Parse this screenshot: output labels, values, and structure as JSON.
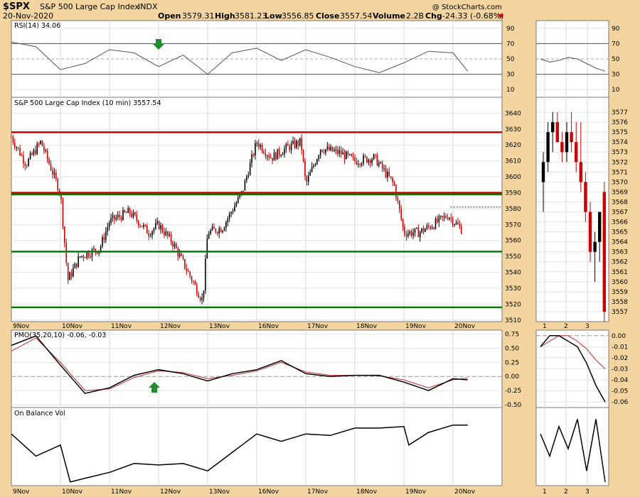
{
  "header": {
    "symbol": "$SPX",
    "name": "S&P 500 Large Cap Index",
    "exchange": "INDX",
    "date": "20-Nov-2020",
    "watermark": "@ StockCharts.com",
    "open_label": "Open",
    "open": "3579.31",
    "high_label": "High",
    "high": "3581.23",
    "low_label": "Low",
    "low": "3556.85",
    "close_label": "Close",
    "close": "3557.54",
    "volume_label": "Volume",
    "volume": "2.2B",
    "chg_label": "Chg",
    "chg": "-24.33 (-0.68%)"
  },
  "colors": {
    "background": "#f4d5a0",
    "plot": "#ffffff",
    "red_line": "#d00000",
    "green_line": "#008000",
    "up_candle": "#000000",
    "down_candle": "#cc0000",
    "signal": "#c03030",
    "arrow": "#1e8c2c"
  },
  "chart_data": [
    {
      "type": "line",
      "panel": "rsi",
      "title": "RSI(14) 34.06",
      "yticks": [
        10,
        30,
        50,
        70,
        90
      ],
      "ylim": [
        0,
        100
      ],
      "overbought": 70,
      "oversold": 30,
      "x_days": [
        0,
        0.5,
        1,
        1.5,
        2,
        2.5,
        3,
        3.5,
        4,
        4.5,
        5,
        5.5,
        6,
        6.5,
        7,
        7.5,
        8,
        8.5,
        9,
        9.3
      ],
      "values": [
        72,
        66,
        36,
        44,
        62,
        58,
        40,
        55,
        30,
        58,
        64,
        48,
        62,
        52,
        40,
        32,
        45,
        60,
        58,
        34
      ],
      "inset_x": [
        0,
        0.5,
        1,
        1.5,
        2,
        2.5,
        3,
        3.5
      ],
      "inset_values": [
        50,
        46,
        48,
        52,
        50,
        44,
        38,
        34
      ]
    },
    {
      "type": "candlestick",
      "panel": "price",
      "title": "S&P 500 Large Cap Index (10 min) 3557.54",
      "yticks": [
        3510,
        3520,
        3530,
        3540,
        3550,
        3560,
        3570,
        3580,
        3590,
        3600,
        3610,
        3620,
        3630,
        3640
      ],
      "ylim": [
        3509,
        3650
      ],
      "x_labels": [
        "9Nov",
        "10Nov",
        "11Nov",
        "12Nov",
        "13Nov",
        "16Nov",
        "17Nov",
        "18Nov",
        "19Nov",
        "20Nov"
      ],
      "horizontal_lines": [
        {
          "value": 3628,
          "color": "red"
        },
        {
          "value": 3590,
          "color": "red"
        },
        {
          "value": 3589,
          "color": "green"
        },
        {
          "value": 3553,
          "color": "green"
        },
        {
          "value": 3518,
          "color": "green"
        }
      ],
      "path_days": [
        0,
        0.3,
        0.6,
        1.0,
        1.15,
        1.4,
        1.8,
        2.0,
        2.4,
        2.8,
        3.0,
        3.3,
        3.6,
        3.9,
        4.0,
        4.3,
        4.7,
        5.0,
        5.3,
        5.6,
        5.9,
        6.0,
        6.3,
        6.7,
        7.0,
        7.4,
        7.8,
        8.0,
        8.3,
        8.6,
        8.9,
        9.2
      ],
      "path_values": [
        3625,
        3608,
        3622,
        3590,
        3535,
        3550,
        3555,
        3572,
        3578,
        3565,
        3570,
        3558,
        3540,
        3522,
        3565,
        3568,
        3590,
        3622,
        3612,
        3618,
        3622,
        3595,
        3618,
        3615,
        3610,
        3612,
        3595,
        3565,
        3565,
        3570,
        3576,
        3566
      ],
      "inset_x_labels": [
        "1",
        "2",
        "3"
      ],
      "inset_yticks": [
        3557,
        3558,
        3559,
        3560,
        3561,
        3562,
        3563,
        3564,
        3565,
        3566,
        3567,
        3568,
        3569,
        3570,
        3571,
        3572,
        3573,
        3574,
        3575,
        3576,
        3577
      ],
      "inset_ylim": [
        3556,
        3578.5
      ],
      "inset_candles": [
        {
          "o": 3570,
          "h": 3573,
          "l": 3567,
          "c": 3572
        },
        {
          "o": 3572,
          "h": 3576,
          "l": 3571,
          "c": 3575
        },
        {
          "o": 3575,
          "h": 3577,
          "l": 3573,
          "c": 3576
        },
        {
          "o": 3576,
          "h": 3577,
          "l": 3574,
          "c": 3574
        },
        {
          "o": 3574,
          "h": 3575,
          "l": 3572,
          "c": 3573
        },
        {
          "o": 3573,
          "h": 3576,
          "l": 3572,
          "c": 3575
        },
        {
          "o": 3575,
          "h": 3577,
          "l": 3573,
          "c": 3574
        },
        {
          "o": 3574,
          "h": 3576,
          "l": 3571,
          "c": 3572
        },
        {
          "o": 3572,
          "h": 3576,
          "l": 3569,
          "c": 3570
        },
        {
          "o": 3570,
          "h": 3571,
          "l": 3566,
          "c": 3567
        },
        {
          "o": 3567,
          "h": 3568,
          "l": 3562,
          "c": 3563
        },
        {
          "o": 3563,
          "h": 3565,
          "l": 3560,
          "c": 3564
        },
        {
          "o": 3564,
          "h": 3567,
          "l": 3562,
          "c": 3567
        },
        {
          "o": 3569,
          "h": 3570,
          "l": 3556,
          "c": 3557
        }
      ]
    },
    {
      "type": "line",
      "panel": "pmo",
      "title": "PMO(35,20,10) -0.06, -0.03",
      "yticks": [
        0.75,
        0.5,
        0.25,
        0.0,
        -0.25,
        -0.5
      ],
      "ylim": [
        -0.55,
        0.82
      ],
      "zero_line": 0,
      "x_days": [
        0,
        0.5,
        1.0,
        1.5,
        2.0,
        2.5,
        3.0,
        3.5,
        4.0,
        4.5,
        5.0,
        5.5,
        6.0,
        6.5,
        7.0,
        7.5,
        8.0,
        8.5,
        9.0,
        9.3
      ],
      "pmo": [
        0.55,
        0.72,
        0.2,
        -0.3,
        -0.2,
        0.02,
        0.12,
        0.05,
        -0.08,
        0.05,
        0.12,
        0.28,
        0.05,
        0.0,
        0.02,
        0.02,
        -0.1,
        -0.25,
        -0.04,
        -0.06
      ],
      "signal": [
        0.45,
        0.68,
        0.25,
        -0.25,
        -0.22,
        -0.02,
        0.1,
        0.07,
        -0.04,
        0.02,
        0.1,
        0.25,
        0.08,
        0.02,
        0.02,
        0.01,
        -0.06,
        -0.2,
        -0.06,
        -0.03
      ],
      "inset_x": [
        0,
        0.5,
        1,
        1.5,
        2,
        2.5,
        3,
        3.5
      ],
      "inset_pmo": [
        -0.01,
        0.0,
        0.0,
        -0.005,
        -0.01,
        -0.025,
        -0.045,
        -0.06
      ],
      "inset_signal": [
        -0.01,
        -0.005,
        0.0,
        0.0,
        -0.005,
        -0.012,
        -0.022,
        -0.03
      ],
      "inset_yticks": [
        0.0,
        -0.01,
        -0.02,
        -0.03,
        -0.04,
        -0.05,
        -0.06
      ],
      "inset_ylim": [
        -0.065,
        0.005
      ]
    },
    {
      "type": "line",
      "panel": "obv",
      "title": "On Balance Vol",
      "x_days": [
        0,
        0.5,
        1.0,
        1.2,
        1.5,
        2.0,
        2.5,
        3.0,
        3.5,
        4.0,
        4.3,
        4.7,
        5.0,
        5.5,
        6.0,
        6.5,
        7.0,
        7.5,
        8.0,
        8.1,
        8.5,
        9.0,
        9.3
      ],
      "values": [
        0.7,
        0.4,
        0.55,
        0.05,
        0.1,
        0.18,
        0.3,
        0.28,
        0.3,
        0.2,
        0.35,
        0.55,
        0.7,
        0.6,
        0.7,
        0.68,
        0.78,
        0.78,
        0.8,
        0.55,
        0.72,
        0.82,
        0.82
      ],
      "inset_x": [
        0,
        0.5,
        1,
        1.5,
        2,
        2.5,
        3,
        3.5
      ],
      "inset_values": [
        0.7,
        0.4,
        0.8,
        0.5,
        0.9,
        0.2,
        0.9,
        0.05
      ]
    }
  ],
  "xaxis": {
    "labels": [
      "9Nov",
      "10Nov",
      "11Nov",
      "12Nov",
      "13Nov",
      "16Nov",
      "17Nov",
      "18Nov",
      "19Nov",
      "20Nov"
    ],
    "inset_labels": [
      "1",
      "2",
      "3"
    ]
  }
}
